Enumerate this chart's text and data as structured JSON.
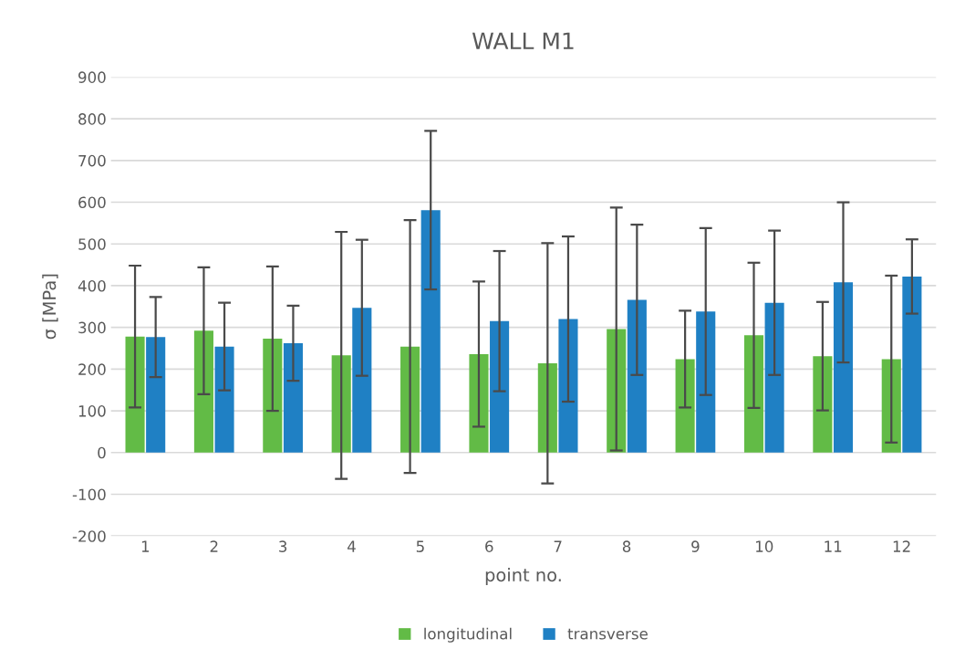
{
  "chart_data": {
    "type": "bar",
    "title": "WALL M1",
    "xlabel": "point no.",
    "ylabel": "σ [MPa]",
    "categories": [
      "1",
      "2",
      "3",
      "4",
      "5",
      "6",
      "7",
      "8",
      "9",
      "10",
      "11",
      "12"
    ],
    "series": [
      {
        "name": "longitudinal",
        "color": "#62bb46",
        "values": [
          278,
          292,
          273,
          233,
          254,
          236,
          214,
          296,
          224,
          281,
          231,
          224
        ],
        "errors": [
          170,
          152,
          173,
          296,
          303,
          174,
          288,
          291,
          116,
          174,
          130,
          200
        ]
      },
      {
        "name": "transverse",
        "color": "#1f80c4",
        "values": [
          277,
          254,
          262,
          347,
          581,
          315,
          320,
          366,
          338,
          359,
          408,
          422
        ],
        "errors": [
          96,
          105,
          90,
          163,
          190,
          168,
          198,
          180,
          200,
          173,
          192,
          89
        ]
      }
    ],
    "ylim": [
      -200,
      900
    ],
    "yticks": [
      -200,
      -100,
      0,
      100,
      200,
      300,
      400,
      500,
      600,
      700,
      800,
      900
    ],
    "grid": "y",
    "legend": "bottom"
  }
}
